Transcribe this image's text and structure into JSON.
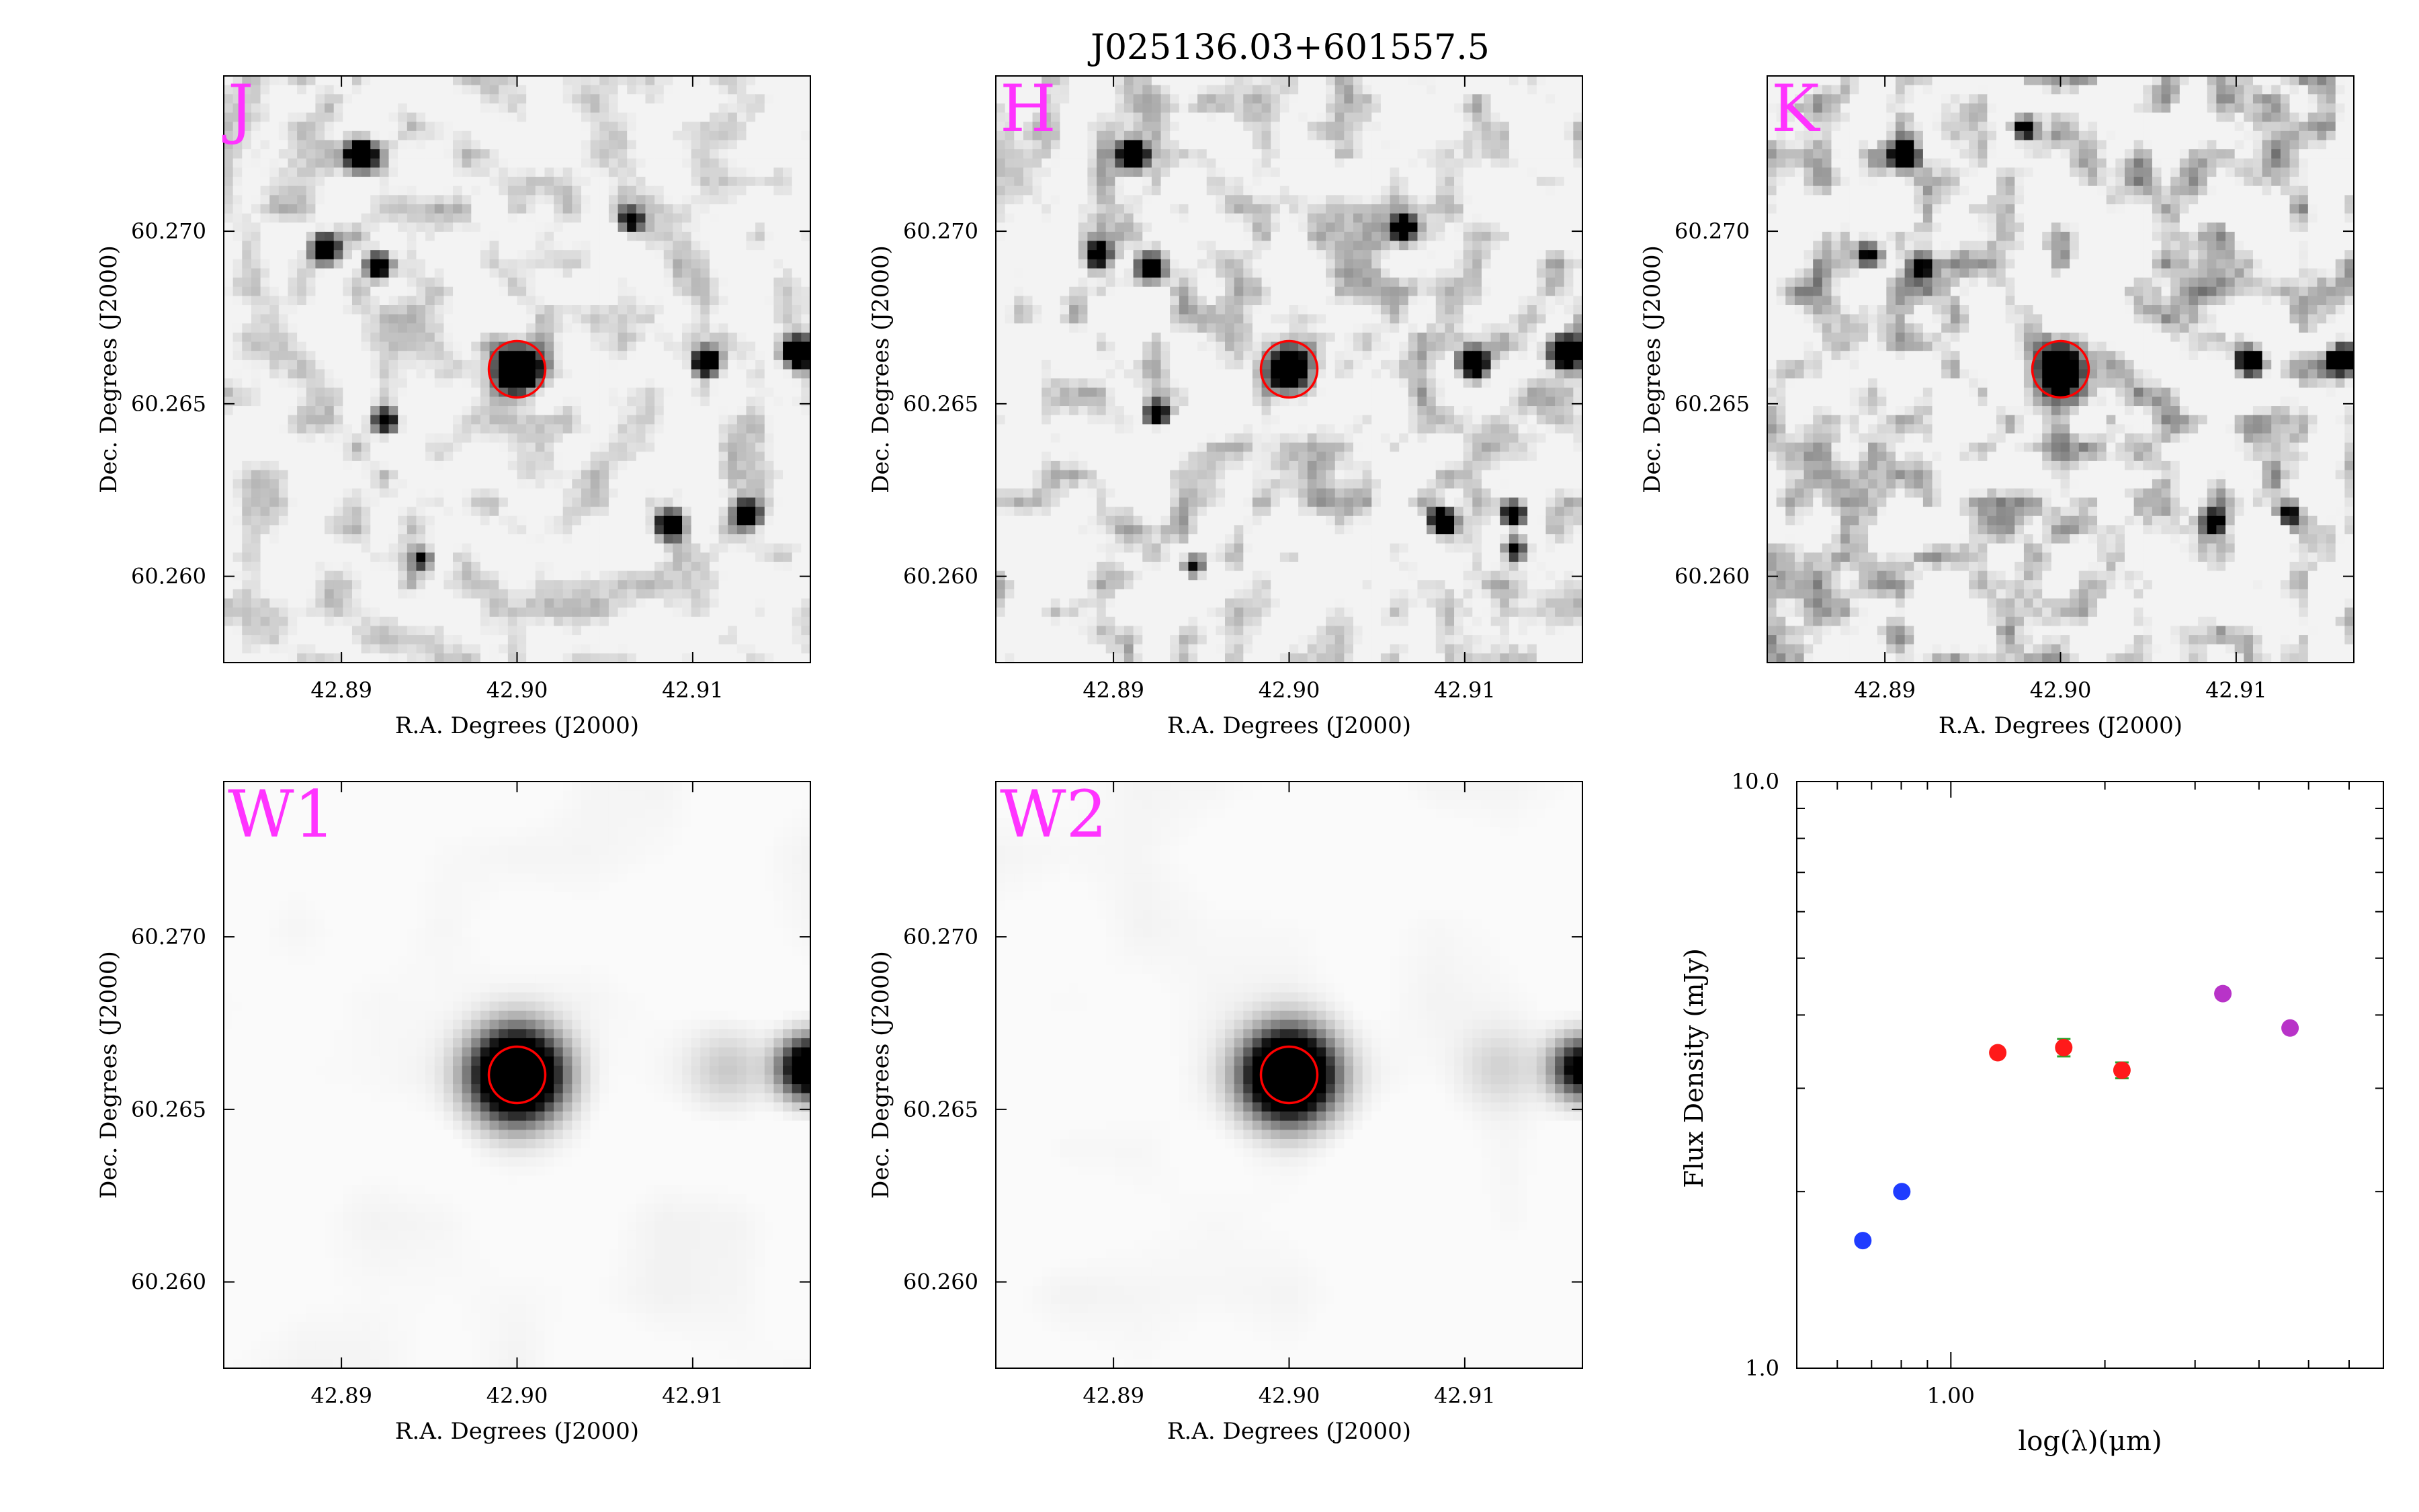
{
  "figure": {
    "title": "J025136.03+601557.5"
  },
  "colors": {
    "band_label": "#ff33ff",
    "aperture": "#ff0000",
    "sed_blue": "#1f3cff",
    "sed_red": "#ff1a1a",
    "sed_magenta": "#b833c8",
    "errorbar": "#2aa02a"
  },
  "chart_data": [
    {
      "type": "heatmap",
      "band": "J",
      "xlabel": "R.A. Degrees (J2000)",
      "ylabel": "Dec. Degrees (J2000)",
      "xlim": [
        42.8833,
        42.9167
      ],
      "ylim": [
        60.2575,
        60.2745
      ],
      "xticks": [
        "42.89",
        "42.90",
        "42.91"
      ],
      "yticks": [
        "60.260",
        "60.265",
        "60.270"
      ],
      "aperture_center": [
        42.9,
        60.266
      ],
      "sources": [
        {
          "ra": 42.9,
          "dec": 60.266,
          "strength": 1.0,
          "size": 1.0
        },
        {
          "ra": 42.8911,
          "dec": 60.2722,
          "strength": 0.95,
          "size": 0.55
        },
        {
          "ra": 42.8891,
          "dec": 60.2695,
          "strength": 0.8,
          "size": 0.45
        },
        {
          "ra": 42.8921,
          "dec": 60.269,
          "strength": 0.85,
          "size": 0.35
        },
        {
          "ra": 42.9065,
          "dec": 60.2703,
          "strength": 0.55,
          "size": 0.35
        },
        {
          "ra": 42.9108,
          "dec": 60.2662,
          "strength": 0.9,
          "size": 0.4
        },
        {
          "ra": 42.916,
          "dec": 60.2665,
          "strength": 1.0,
          "size": 0.55
        },
        {
          "ra": 42.9087,
          "dec": 60.2615,
          "strength": 0.85,
          "size": 0.4
        },
        {
          "ra": 42.9131,
          "dec": 60.2618,
          "strength": 0.8,
          "size": 0.4
        },
        {
          "ra": 42.8925,
          "dec": 60.2645,
          "strength": 0.6,
          "size": 0.4
        },
        {
          "ra": 42.8946,
          "dec": 60.2605,
          "strength": 0.45,
          "size": 0.3
        }
      ],
      "noise": 0.28,
      "noise_seed": 7,
      "smoothing": "smooth"
    },
    {
      "type": "heatmap",
      "band": "H",
      "xlabel": "R.A. Degrees (J2000)",
      "ylabel": "Dec. Degrees (J2000)",
      "xlim": [
        42.8833,
        42.9167
      ],
      "ylim": [
        60.2575,
        60.2745
      ],
      "xticks": [
        "42.89",
        "42.90",
        "42.91"
      ],
      "yticks": [
        "60.260",
        "60.265",
        "60.270"
      ],
      "aperture_center": [
        42.9,
        60.266
      ],
      "sources": [
        {
          "ra": 42.9,
          "dec": 60.266,
          "strength": 1.0,
          "size": 1.0
        },
        {
          "ra": 42.8911,
          "dec": 60.2722,
          "strength": 0.95,
          "size": 0.45
        },
        {
          "ra": 42.8891,
          "dec": 60.2693,
          "strength": 0.8,
          "size": 0.4
        },
        {
          "ra": 42.8921,
          "dec": 60.2689,
          "strength": 0.85,
          "size": 0.35
        },
        {
          "ra": 42.9065,
          "dec": 60.2701,
          "strength": 0.7,
          "size": 0.35
        },
        {
          "ra": 42.9105,
          "dec": 60.2662,
          "strength": 0.95,
          "size": 0.4
        },
        {
          "ra": 42.9157,
          "dec": 60.2665,
          "strength": 1.0,
          "size": 0.55
        },
        {
          "ra": 42.9087,
          "dec": 60.2616,
          "strength": 0.85,
          "size": 0.4
        },
        {
          "ra": 42.9128,
          "dec": 60.2618,
          "strength": 0.8,
          "size": 0.4
        },
        {
          "ra": 42.8925,
          "dec": 60.2647,
          "strength": 0.75,
          "size": 0.4
        },
        {
          "ra": 42.9128,
          "dec": 60.2608,
          "strength": 0.6,
          "size": 0.35
        },
        {
          "ra": 42.8946,
          "dec": 60.2603,
          "strength": 0.55,
          "size": 0.3
        }
      ],
      "noise": 0.38,
      "noise_seed": 19,
      "smoothing": "smooth"
    },
    {
      "type": "heatmap",
      "band": "K",
      "xlabel": "R.A. Degrees (J2000)",
      "ylabel": "Dec. Degrees (J2000)",
      "xlim": [
        42.8833,
        42.9167
      ],
      "ylim": [
        60.2575,
        60.2745
      ],
      "xticks": [
        "42.89",
        "42.90",
        "42.91"
      ],
      "yticks": [
        "60.260",
        "60.265",
        "60.270"
      ],
      "aperture_center": [
        42.9,
        60.266
      ],
      "sources": [
        {
          "ra": 42.9,
          "dec": 60.266,
          "strength": 1.0,
          "size": 1.0
        },
        {
          "ra": 42.8911,
          "dec": 60.2722,
          "strength": 0.9,
          "size": 0.4
        },
        {
          "ra": 42.898,
          "dec": 60.273,
          "strength": 0.7,
          "size": 0.35
        },
        {
          "ra": 42.8891,
          "dec": 60.2693,
          "strength": 0.55,
          "size": 0.4
        },
        {
          "ra": 42.8921,
          "dec": 60.269,
          "strength": 0.6,
          "size": 0.35
        },
        {
          "ra": 42.9108,
          "dec": 60.2662,
          "strength": 1.0,
          "size": 0.45
        },
        {
          "ra": 42.916,
          "dec": 60.2663,
          "strength": 1.0,
          "size": 0.45
        },
        {
          "ra": 42.9087,
          "dec": 60.2616,
          "strength": 0.55,
          "size": 0.35
        },
        {
          "ra": 42.913,
          "dec": 60.2618,
          "strength": 0.55,
          "size": 0.35
        }
      ],
      "noise": 0.5,
      "noise_seed": 31,
      "smoothing": "smooth"
    },
    {
      "type": "heatmap",
      "band": "W1",
      "xlabel": "R.A. Degrees (J2000)",
      "ylabel": "Dec. Degrees (J2000)",
      "xlim": [
        42.8833,
        42.9167
      ],
      "ylim": [
        60.2575,
        60.2745
      ],
      "xticks": [
        "42.89",
        "42.90",
        "42.91"
      ],
      "yticks": [
        "60.260",
        "60.265",
        "60.270"
      ],
      "aperture_center": [
        42.9,
        60.266
      ],
      "sources": [
        {
          "ra": 42.9,
          "dec": 60.266,
          "strength": 1.0,
          "size": 2.2
        },
        {
          "ra": 42.9167,
          "dec": 60.2662,
          "strength": 0.75,
          "size": 1.4
        },
        {
          "ra": 42.912,
          "dec": 60.2662,
          "strength": 0.08,
          "size": 2.0
        }
      ],
      "noise": 0.05,
      "noise_seed": 43,
      "smoothing": "very-smooth"
    },
    {
      "type": "heatmap",
      "band": "W2",
      "xlabel": "R.A. Degrees (J2000)",
      "ylabel": "Dec. Degrees (J2000)",
      "xlim": [
        42.8833,
        42.9167
      ],
      "ylim": [
        60.2575,
        60.2745
      ],
      "xticks": [
        "42.89",
        "42.90",
        "42.91"
      ],
      "yticks": [
        "60.260",
        "60.265",
        "60.270"
      ],
      "aperture_center": [
        42.9,
        60.266
      ],
      "sources": [
        {
          "ra": 42.9,
          "dec": 60.266,
          "strength": 1.0,
          "size": 2.2
        },
        {
          "ra": 42.9167,
          "dec": 60.2662,
          "strength": 0.55,
          "size": 1.4
        },
        {
          "ra": 42.912,
          "dec": 60.2662,
          "strength": 0.07,
          "size": 2.0
        }
      ],
      "noise": 0.05,
      "noise_seed": 57,
      "smoothing": "very-smooth"
    },
    {
      "type": "scatter",
      "xlabel": "log(λ)(μm)",
      "ylabel": "Flux Density (mJy)",
      "xscale": "log",
      "yscale": "log",
      "xlim": [
        0.5,
        7.0
      ],
      "ylim": [
        1.0,
        10.0
      ],
      "xticks": [
        "1.00"
      ],
      "yticks": [
        "1.0",
        "10.0"
      ],
      "grid": false,
      "series": [
        {
          "color_key": "sed_blue",
          "points": [
            {
              "x": 0.673,
              "y": 1.65,
              "err": 0.03
            },
            {
              "x": 0.802,
              "y": 2.0,
              "err": 0.03
            }
          ]
        },
        {
          "color_key": "sed_red",
          "points": [
            {
              "x": 1.235,
              "y": 3.45,
              "err": 0.06
            },
            {
              "x": 1.662,
              "y": 3.52,
              "err": 0.12
            },
            {
              "x": 2.159,
              "y": 3.22,
              "err": 0.1
            }
          ]
        },
        {
          "color_key": "sed_magenta",
          "points": [
            {
              "x": 3.4,
              "y": 4.35,
              "err": 0.05
            },
            {
              "x": 4.6,
              "y": 3.8,
              "err": 0.05
            }
          ]
        }
      ]
    }
  ]
}
